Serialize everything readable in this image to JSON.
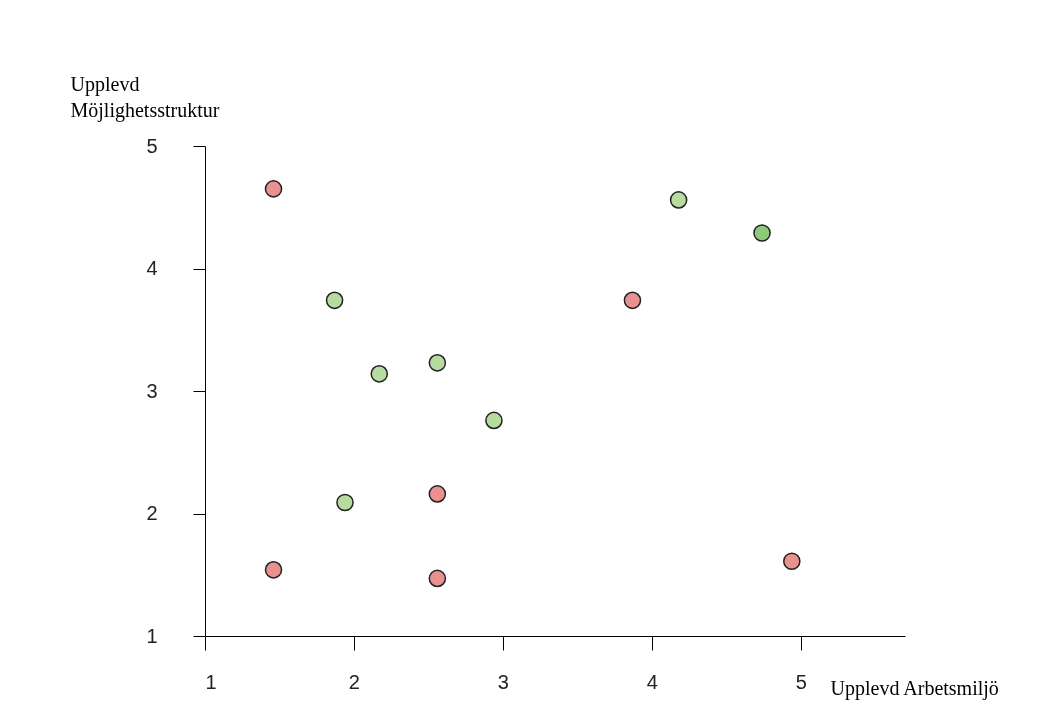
{
  "chart_data": {
    "type": "scatter",
    "xlabel": "Upplevd Arbetsmiljö",
    "ylabel": "Upplevd Möjlighetsstruktur",
    "xlim": [
      1,
      5.7
    ],
    "ylim": [
      1,
      5
    ],
    "xticks": [
      1,
      2,
      3,
      4,
      5
    ],
    "yticks": [
      1,
      2,
      3,
      4,
      5
    ],
    "grid": false,
    "marker": "circle",
    "series": [
      {
        "color": "#e8918e",
        "x": [
          1.46,
          3.87,
          2.56,
          1.46,
          2.56,
          4.94
        ],
        "values": [
          4.65,
          3.74,
          2.16,
          1.54,
          1.47,
          1.61
        ]
      },
      {
        "color": "#b6dca0",
        "colors": [
          null,
          "#8fc97a",
          null,
          null,
          null,
          null,
          null
        ],
        "x": [
          4.18,
          4.74,
          1.87,
          2.17,
          2.56,
          2.94,
          1.94
        ],
        "values": [
          4.56,
          4.29,
          3.74,
          3.14,
          3.23,
          2.76,
          2.09
        ]
      }
    ]
  }
}
